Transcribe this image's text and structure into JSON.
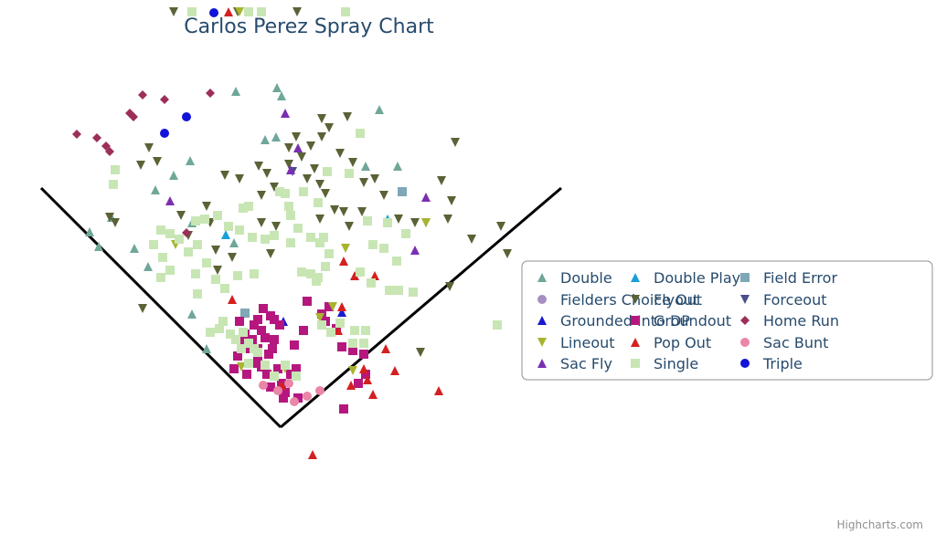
{
  "chart_data": {
    "type": "scatter",
    "title": "Carlos Perez Spray Chart",
    "credits": "Highcharts.com",
    "legend_position": "right",
    "series": [
      {
        "name": "Double",
        "marker": "triangle",
        "color": "#6fa79a",
        "points": [
          [
            258,
            100
          ],
          [
            303,
            96
          ],
          [
            308,
            105
          ],
          [
            290,
            153
          ],
          [
            302,
            150
          ],
          [
            208,
            176
          ],
          [
            190,
            192
          ],
          [
            170,
            208
          ],
          [
            122,
            238
          ],
          [
            98,
            254
          ],
          [
            108,
            270
          ],
          [
            147,
            272
          ],
          [
            162,
            292
          ],
          [
            210,
            244
          ],
          [
            256,
            266
          ],
          [
            400,
            182
          ],
          [
            435,
            182
          ],
          [
            415,
            120
          ],
          [
            226,
            382
          ],
          [
            210,
            344
          ]
        ]
      },
      {
        "name": "Double Play",
        "marker": "triangle",
        "color": "#1aa0d8",
        "points": [
          [
            247,
            257
          ],
          [
            424,
            240
          ]
        ]
      },
      {
        "name": "Field Error",
        "marker": "square",
        "color": "#7ea7b8",
        "points": [
          [
            440,
            210
          ],
          [
            268,
            343
          ]
        ]
      },
      {
        "name": "Fielders Choice Out",
        "marker": "circle",
        "color": "#a78ec0",
        "points": [
          [
            290,
            404
          ]
        ]
      },
      {
        "name": "Flyout",
        "marker": "triangle-down",
        "color": "#5a6236",
        "points": [
          [
            190,
            13
          ],
          [
            325,
            13
          ],
          [
            260,
            13
          ],
          [
            154,
            181
          ],
          [
            172,
            177
          ],
          [
            163,
            162
          ],
          [
            246,
            192
          ],
          [
            262,
            196
          ],
          [
            283,
            182
          ],
          [
            292,
            190
          ],
          [
            300,
            205
          ],
          [
            316,
            180
          ],
          [
            330,
            172
          ],
          [
            344,
            185
          ],
          [
            352,
            150
          ],
          [
            360,
            140
          ],
          [
            380,
            128
          ],
          [
            352,
            130
          ],
          [
            372,
            168
          ],
          [
            386,
            178
          ],
          [
            398,
            200
          ],
          [
            410,
            196
          ],
          [
            420,
            214
          ],
          [
            324,
            150
          ],
          [
            340,
            160
          ],
          [
            316,
            162
          ],
          [
            336,
            196
          ],
          [
            350,
            202
          ],
          [
            356,
            212
          ],
          [
            366,
            230
          ],
          [
            350,
            240
          ],
          [
            376,
            232
          ],
          [
            396,
            232
          ],
          [
            436,
            240
          ],
          [
            454,
            244
          ],
          [
            466,
            244
          ],
          [
            490,
            240
          ],
          [
            483,
            198
          ],
          [
            494,
            220
          ],
          [
            498,
            156
          ],
          [
            548,
            248
          ],
          [
            516,
            262
          ],
          [
            555,
            278
          ],
          [
            238,
            296
          ],
          [
            254,
            282
          ],
          [
            230,
            244
          ],
          [
            206,
            258
          ],
          [
            198,
            236
          ],
          [
            226,
            226
          ],
          [
            286,
            214
          ],
          [
            286,
            244
          ],
          [
            302,
            248
          ],
          [
            382,
            248
          ],
          [
            296,
            278
          ],
          [
            236,
            274
          ],
          [
            460,
            386
          ],
          [
            156,
            338
          ],
          [
            126,
            244
          ],
          [
            120,
            238
          ],
          [
            492,
            314
          ]
        ]
      },
      {
        "name": "Forceout",
        "marker": "triangle-down",
        "color": "#4a4e8a",
        "points": [
          [
            320,
            188
          ]
        ]
      },
      {
        "name": "Grounded Into DP",
        "marker": "triangle",
        "color": "#1a1ad0",
        "points": [
          [
            310,
            352
          ],
          [
            374,
            342
          ]
        ]
      },
      {
        "name": "Groundout",
        "marker": "square",
        "color": "#b5177e",
        "points": [
          [
            262,
            352
          ],
          [
            278,
            356
          ],
          [
            286,
            362
          ],
          [
            296,
            346
          ],
          [
            306,
            356
          ],
          [
            290,
            370
          ],
          [
            272,
            382
          ],
          [
            260,
            390
          ],
          [
            282,
            396
          ],
          [
            256,
            404
          ],
          [
            270,
            410
          ],
          [
            292,
            410
          ],
          [
            304,
            404
          ],
          [
            318,
            410
          ],
          [
            324,
            404
          ],
          [
            308,
            420
          ],
          [
            296,
            424
          ],
          [
            312,
            430
          ],
          [
            326,
            436
          ],
          [
            310,
            436
          ],
          [
            276,
            398
          ],
          [
            268,
            366
          ],
          [
            282,
            382
          ],
          [
            294,
            388
          ],
          [
            300,
            372
          ],
          [
            332,
            362
          ],
          [
            356,
            352
          ],
          [
            368,
            360
          ],
          [
            374,
            380
          ],
          [
            386,
            384
          ],
          [
            398,
            388
          ],
          [
            400,
            410
          ],
          [
            392,
            420
          ],
          [
            376,
            448
          ],
          [
            336,
            330
          ],
          [
            352,
            344
          ],
          [
            360,
            336
          ],
          [
            282,
            350
          ],
          [
            298,
            382
          ],
          [
            288,
            338
          ],
          [
            264,
            372
          ],
          [
            322,
            378
          ],
          [
            286,
            402
          ],
          [
            300,
            350
          ],
          [
            276,
            372
          ]
        ]
      },
      {
        "name": "Home Run",
        "marker": "diamond",
        "color": "#9c2f5a",
        "points": [
          [
            84,
            147
          ],
          [
            106,
            151
          ],
          [
            116,
            160
          ],
          [
            120,
            166
          ],
          [
            142,
            124
          ],
          [
            146,
            128
          ],
          [
            156,
            104
          ],
          [
            180,
            109
          ],
          [
            230,
            102
          ],
          [
            204,
            255
          ]
        ]
      },
      {
        "name": "Lineout",
        "marker": "triangle-down",
        "color": "#a8b430",
        "points": [
          [
            262,
            13
          ],
          [
            378,
            272
          ],
          [
            364,
            336
          ],
          [
            350,
            348
          ],
          [
            386,
            406
          ],
          [
            264,
            402
          ],
          [
            312,
            404
          ],
          [
            192,
            268
          ],
          [
            466,
            244
          ]
        ]
      },
      {
        "name": "Pop Out",
        "marker": "triangle",
        "color": "#d42020",
        "points": [
          [
            250,
            13
          ],
          [
            342,
            498
          ],
          [
            376,
            286
          ],
          [
            388,
            302
          ],
          [
            410,
            302
          ],
          [
            422,
            382
          ],
          [
            432,
            406
          ],
          [
            398,
            404
          ],
          [
            402,
            416
          ],
          [
            384,
            422
          ],
          [
            408,
            432
          ],
          [
            480,
            428
          ],
          [
            254,
            328
          ],
          [
            370,
            362
          ],
          [
            374,
            336
          ],
          [
            308,
            422
          ]
        ]
      },
      {
        "name": "Sac Bunt",
        "marker": "circle",
        "color": "#ea86a8",
        "points": [
          [
            288,
            422
          ],
          [
            304,
            428
          ],
          [
            322,
            440
          ],
          [
            336,
            434
          ],
          [
            350,
            428
          ],
          [
            316,
            420
          ]
        ]
      },
      {
        "name": "Sac Fly",
        "marker": "triangle",
        "color": "#7a2fb2",
        "points": [
          [
            312,
            124
          ],
          [
            326,
            162
          ],
          [
            318,
            186
          ],
          [
            186,
            220
          ],
          [
            466,
            216
          ],
          [
            454,
            274
          ]
        ]
      },
      {
        "name": "Single",
        "marker": "square",
        "color": "#c8e6b4",
        "points": [
          [
            210,
            13
          ],
          [
            272,
            13
          ],
          [
            286,
            13
          ],
          [
            378,
            13
          ],
          [
            126,
            186
          ],
          [
            124,
            202
          ],
          [
            176,
            252
          ],
          [
            186,
            256
          ],
          [
            168,
            268
          ],
          [
            178,
            282
          ],
          [
            186,
            296
          ],
          [
            176,
            304
          ],
          [
            196,
            262
          ],
          [
            206,
            276
          ],
          [
            216,
            268
          ],
          [
            226,
            288
          ],
          [
            214,
            300
          ],
          [
            236,
            306
          ],
          [
            246,
            316
          ],
          [
            260,
            302
          ],
          [
            278,
            300
          ],
          [
            266,
            228
          ],
          [
            272,
            226
          ],
          [
            224,
            240
          ],
          [
            238,
            236
          ],
          [
            214,
            242
          ],
          [
            250,
            248
          ],
          [
            262,
            252
          ],
          [
            276,
            260
          ],
          [
            290,
            262
          ],
          [
            300,
            258
          ],
          [
            318,
            266
          ],
          [
            326,
            250
          ],
          [
            318,
            236
          ],
          [
            316,
            226
          ],
          [
            312,
            212
          ],
          [
            306,
            210
          ],
          [
            332,
            210
          ],
          [
            348,
            222
          ],
          [
            358,
            188
          ],
          [
            382,
            190
          ],
          [
            394,
            146
          ],
          [
            424,
            244
          ],
          [
            444,
            256
          ],
          [
            402,
            242
          ],
          [
            408,
            268
          ],
          [
            420,
            272
          ],
          [
            434,
            286
          ],
          [
            394,
            298
          ],
          [
            406,
            310
          ],
          [
            426,
            318
          ],
          [
            436,
            318
          ],
          [
            452,
            320
          ],
          [
            330,
            298
          ],
          [
            340,
            300
          ],
          [
            348,
            304
          ],
          [
            356,
            292
          ],
          [
            360,
            278
          ],
          [
            350,
            266
          ],
          [
            340,
            260
          ],
          [
            354,
            260
          ],
          [
            216,
            322
          ],
          [
            240,
            360
          ],
          [
            252,
            366
          ],
          [
            266,
            364
          ],
          [
            272,
            376
          ],
          [
            278,
            382
          ],
          [
            258,
            372
          ],
          [
            264,
            382
          ],
          [
            272,
            398
          ],
          [
            290,
            400
          ],
          [
            312,
            400
          ],
          [
            324,
            412
          ],
          [
            300,
            412
          ],
          [
            386,
            376
          ],
          [
            398,
            376
          ],
          [
            400,
            362
          ],
          [
            362,
            364
          ],
          [
            544,
            356
          ],
          [
            230,
            364
          ],
          [
            244,
            352
          ],
          [
            346,
            308
          ],
          [
            272,
            376
          ],
          [
            282,
            386
          ],
          [
            388,
            362
          ],
          [
            352,
            356
          ],
          [
            372,
            354
          ]
        ]
      },
      {
        "name": "Triple",
        "marker": "circle",
        "color": "#1212d8",
        "points": [
          [
            234,
            14
          ],
          [
            204,
            128
          ],
          [
            180,
            146
          ]
        ]
      }
    ],
    "field_lines": {
      "left_foul": [
        [
          45,
          206
        ],
        [
          307,
          468
        ]
      ],
      "right_foul": [
        [
          307,
          468
        ],
        [
          614,
          206
        ]
      ]
    }
  }
}
